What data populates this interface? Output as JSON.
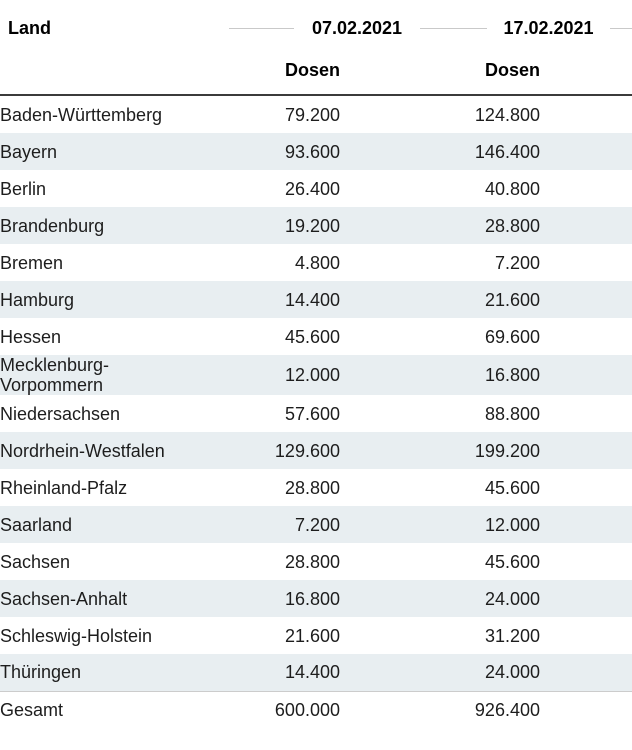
{
  "table": {
    "land_header": "Land",
    "groups": [
      {
        "date": "07.02.2021",
        "sub": "Dosen"
      },
      {
        "date": "17.02.2021",
        "sub": "Dosen"
      }
    ],
    "rows": [
      {
        "land": "Baden-Württemberg",
        "dosen1": "79.200",
        "dosen2": "124.800"
      },
      {
        "land": "Bayern",
        "dosen1": "93.600",
        "dosen2": "146.400"
      },
      {
        "land": "Berlin",
        "dosen1": "26.400",
        "dosen2": "40.800"
      },
      {
        "land": "Brandenburg",
        "dosen1": "19.200",
        "dosen2": "28.800"
      },
      {
        "land": "Bremen",
        "dosen1": "4.800",
        "dosen2": "7.200"
      },
      {
        "land": "Hamburg",
        "dosen1": "14.400",
        "dosen2": "21.600"
      },
      {
        "land": "Hessen",
        "dosen1": "45.600",
        "dosen2": "69.600"
      },
      {
        "land": "Mecklenburg-\nVorpommern",
        "dosen1": "12.000",
        "dosen2": "16.800"
      },
      {
        "land": "Niedersachsen",
        "dosen1": "57.600",
        "dosen2": "88.800"
      },
      {
        "land": "Nordrhein-Westfalen",
        "dosen1": "129.600",
        "dosen2": "199.200"
      },
      {
        "land": "Rheinland-Pfalz",
        "dosen1": "28.800",
        "dosen2": "45.600"
      },
      {
        "land": "Saarland",
        "dosen1": "7.200",
        "dosen2": "12.000"
      },
      {
        "land": "Sachsen",
        "dosen1": "28.800",
        "dosen2": "45.600"
      },
      {
        "land": "Sachsen-Anhalt",
        "dosen1": "16.800",
        "dosen2": "24.000"
      },
      {
        "land": "Schleswig-Holstein",
        "dosen1": "21.600",
        "dosen2": "31.200"
      },
      {
        "land": "Thüringen",
        "dosen1": "14.400",
        "dosen2": "24.000"
      }
    ],
    "total": {
      "land": "Gesamt",
      "dosen1": "600.000",
      "dosen2": "926.400"
    }
  },
  "colors": {
    "zebra_row": "#e8eef1",
    "header_rule": "#3b3b3b",
    "header_line": "#c9c9c9",
    "total_border": "#cccccc",
    "text": "#1d1d1d"
  },
  "chart_data": {
    "type": "table",
    "title": "",
    "column_groups": [
      "",
      "07.02.2021",
      "17.02.2021"
    ],
    "columns": [
      "Land",
      "Dosen",
      "Dosen"
    ],
    "rows": [
      [
        "Baden-Württemberg",
        79200,
        124800
      ],
      [
        "Bayern",
        93600,
        146400
      ],
      [
        "Berlin",
        26400,
        40800
      ],
      [
        "Brandenburg",
        19200,
        28800
      ],
      [
        "Bremen",
        4800,
        7200
      ],
      [
        "Hamburg",
        14400,
        21600
      ],
      [
        "Hessen",
        45600,
        69600
      ],
      [
        "Mecklenburg-Vorpommern",
        12000,
        16800
      ],
      [
        "Niedersachsen",
        57600,
        88800
      ],
      [
        "Nordrhein-Westfalen",
        129600,
        199200
      ],
      [
        "Rheinland-Pfalz",
        28800,
        45600
      ],
      [
        "Saarland",
        7200,
        12000
      ],
      [
        "Sachsen",
        28800,
        45600
      ],
      [
        "Sachsen-Anhalt",
        16800,
        24000
      ],
      [
        "Schleswig-Holstein",
        21600,
        31200
      ],
      [
        "Thüringen",
        14400,
        24000
      ]
    ],
    "total_row": [
      "Gesamt",
      600000,
      926400
    ],
    "number_format": "de-DE thousands separator (.)",
    "layout_hints": {
      "zebra_striping": true,
      "value_alignment": "right",
      "group_header_style": "dates flanked by horizontal rule segments"
    }
  }
}
